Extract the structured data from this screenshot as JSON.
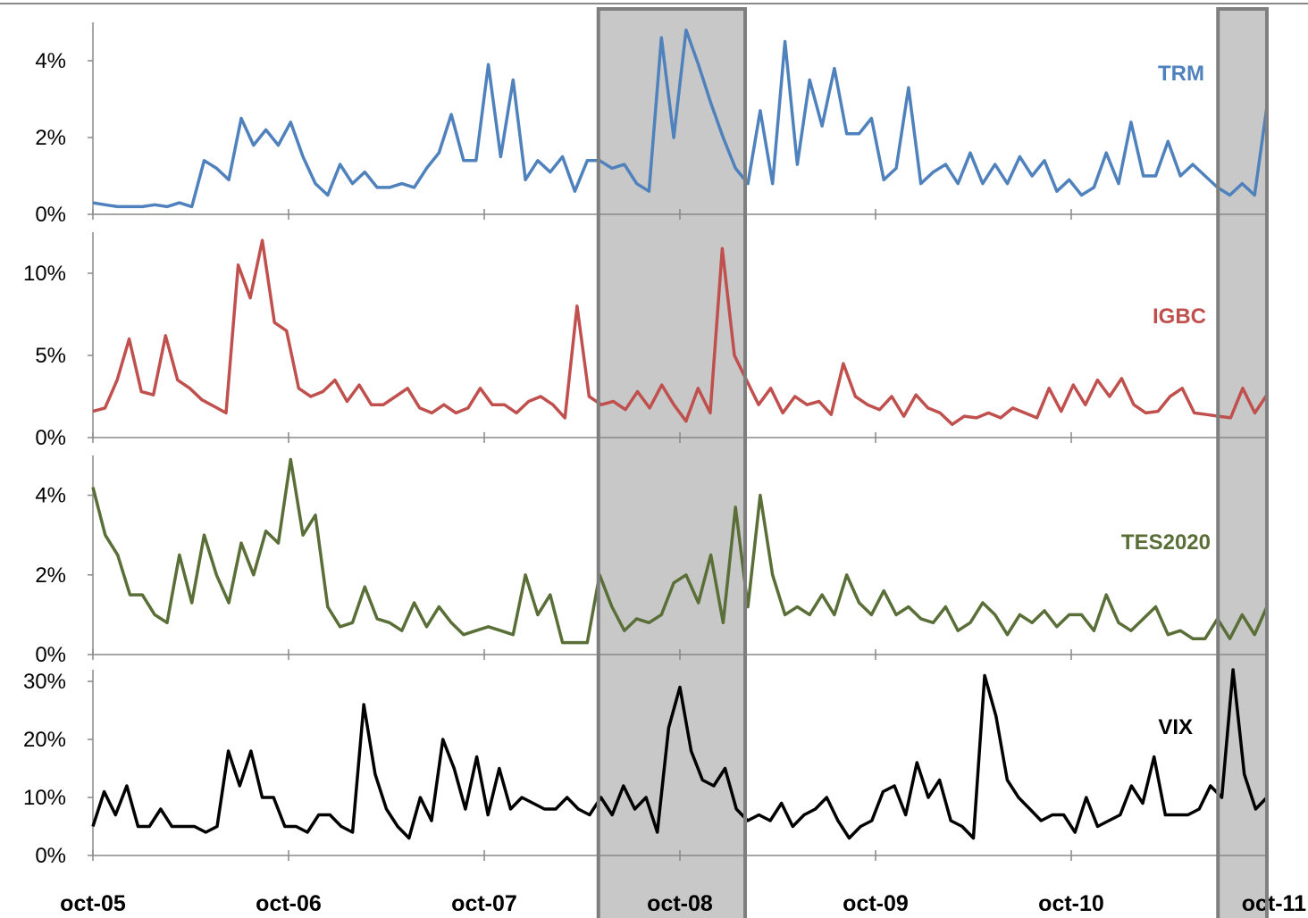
{
  "chart_data": {
    "type": "line",
    "x_labels": [
      "oct-05",
      "oct-06",
      "oct-07",
      "oct-08",
      "oct-09",
      "oct-10",
      "oct-11"
    ],
    "x_range": [
      "oct-05",
      "oct-11"
    ],
    "shaded_periods": [
      [
        "may-08",
        "feb-09"
      ],
      [
        "jul-11",
        "oct-11"
      ]
    ],
    "grid": false,
    "panels": [
      {
        "name": "TRM",
        "color": "#4f81bd",
        "yticks": [
          "0%",
          "2%",
          "4%"
        ],
        "ylim": [
          0,
          5
        ],
        "values": [
          0.3,
          0.25,
          0.2,
          0.2,
          0.2,
          0.25,
          0.2,
          0.3,
          0.2,
          1.4,
          1.2,
          0.9,
          2.5,
          1.8,
          2.2,
          1.8,
          2.4,
          1.5,
          0.8,
          0.5,
          1.3,
          0.8,
          1.1,
          0.7,
          0.7,
          0.8,
          0.7,
          1.2,
          1.6,
          2.6,
          1.4,
          1.4,
          3.9,
          1.5,
          3.5,
          0.9,
          1.4,
          1.1,
          1.5,
          0.6,
          1.4,
          1.4,
          1.2,
          1.3,
          0.8,
          0.6,
          4.6,
          2.0,
          4.8,
          3.9,
          2.9,
          2.0,
          1.2,
          0.8,
          2.7,
          0.8,
          4.5,
          1.3,
          3.5,
          2.3,
          3.8,
          2.1,
          2.1,
          2.5,
          0.9,
          1.2,
          3.3,
          0.8,
          1.1,
          1.3,
          0.8,
          1.6,
          0.8,
          1.3,
          0.8,
          1.5,
          1.0,
          1.4,
          0.6,
          0.9,
          0.5,
          0.7,
          1.6,
          0.8,
          2.4,
          1.0,
          1.0,
          1.9,
          1.0,
          1.3,
          1.0,
          0.7,
          0.5,
          0.8,
          0.5,
          2.8
        ]
      },
      {
        "name": "IGBC",
        "color": "#c0504d",
        "yticks": [
          "0%",
          "5%",
          "10%"
        ],
        "ylim": [
          0,
          12.5
        ],
        "values": [
          1.6,
          1.8,
          3.5,
          6.0,
          2.8,
          2.6,
          6.2,
          3.5,
          3.0,
          2.3,
          1.9,
          1.5,
          10.5,
          8.5,
          12.0,
          7.0,
          6.5,
          3.0,
          2.5,
          2.8,
          3.5,
          2.2,
          3.2,
          2.0,
          2.0,
          2.5,
          3.0,
          1.8,
          1.5,
          2.0,
          1.5,
          1.8,
          3.0,
          2.0,
          2.0,
          1.5,
          2.2,
          2.5,
          2.0,
          1.2,
          8.0,
          2.5,
          2.0,
          2.2,
          1.7,
          2.8,
          1.8,
          3.2,
          2.0,
          1.0,
          3.0,
          1.5,
          11.5,
          5.0,
          3.5,
          2.0,
          3.0,
          1.5,
          2.5,
          2.0,
          2.2,
          1.4,
          4.5,
          2.5,
          2.0,
          1.7,
          2.5,
          1.3,
          2.6,
          1.8,
          1.5,
          0.8,
          1.3,
          1.2,
          1.5,
          1.2,
          1.8,
          1.5,
          1.2,
          3.0,
          1.6,
          3.2,
          2.0,
          3.5,
          2.5,
          3.6,
          2.0,
          1.5,
          1.6,
          2.5,
          3.0,
          1.5,
          1.4,
          1.3,
          1.2,
          3.0,
          1.5,
          2.6
        ]
      },
      {
        "name": "TES2020",
        "color": "#5a6e37",
        "yticks": [
          "0%",
          "2%",
          "4%"
        ],
        "ylim": [
          0,
          5
        ],
        "values": [
          4.2,
          3.0,
          2.5,
          1.5,
          1.5,
          1.0,
          0.8,
          2.5,
          1.3,
          3.0,
          2.0,
          1.3,
          2.8,
          2.0,
          3.1,
          2.8,
          4.9,
          3.0,
          3.5,
          1.2,
          0.7,
          0.8,
          1.7,
          0.9,
          0.8,
          0.6,
          1.3,
          0.7,
          1.2,
          0.8,
          0.5,
          0.6,
          0.7,
          0.6,
          0.5,
          2.0,
          1.0,
          1.5,
          0.3,
          0.3,
          0.3,
          2.0,
          1.2,
          0.6,
          0.9,
          0.8,
          1.0,
          1.8,
          2.0,
          1.3,
          2.5,
          0.8,
          3.7,
          1.2,
          4.0,
          2.0,
          1.0,
          1.2,
          1.0,
          1.5,
          1.0,
          2.0,
          1.3,
          1.0,
          1.6,
          1.0,
          1.2,
          0.9,
          0.8,
          1.2,
          0.6,
          0.8,
          1.3,
          1.0,
          0.5,
          1.0,
          0.8,
          1.1,
          0.7,
          1.0,
          1.0,
          0.6,
          1.5,
          0.8,
          0.6,
          0.9,
          1.2,
          0.5,
          0.6,
          0.4,
          0.4,
          0.9,
          0.4,
          1.0,
          0.5,
          1.2
        ]
      },
      {
        "name": "VIX",
        "color": "#000000",
        "yticks": [
          "0%",
          "10%",
          "20%",
          "30%"
        ],
        "ylim": [
          0,
          32
        ],
        "values": [
          5,
          11,
          7,
          12,
          5,
          5,
          8,
          5,
          5,
          5,
          4,
          5,
          18,
          12,
          18,
          10,
          10,
          5,
          5,
          4,
          7,
          7,
          5,
          4,
          26,
          14,
          8,
          5,
          3,
          10,
          6,
          20,
          15,
          8,
          17,
          7,
          15,
          8,
          10,
          9,
          8,
          8,
          10,
          8,
          7,
          10,
          7,
          12,
          8,
          10,
          4,
          22,
          29,
          18,
          13,
          12,
          15,
          8,
          6,
          7,
          6,
          9,
          5,
          7,
          8,
          10,
          6,
          3,
          5,
          6,
          11,
          12,
          7,
          16,
          10,
          13,
          6,
          5,
          3,
          31,
          24,
          13,
          10,
          8,
          6,
          7,
          7,
          4,
          10,
          5,
          6,
          7,
          12,
          9,
          17,
          7,
          7,
          7,
          8,
          12,
          10,
          32,
          14,
          8,
          10
        ]
      }
    ]
  }
}
